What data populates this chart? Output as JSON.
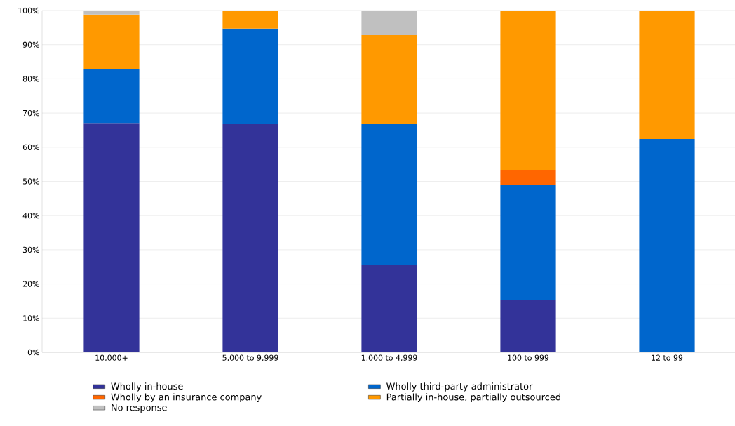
{
  "chart_data": {
    "type": "bar",
    "stacked": true,
    "categories": [
      "10,000+",
      "5,000 to 9,999",
      "1,000 to 4,999",
      "100 to 999",
      "12 to 99"
    ],
    "series": [
      {
        "name": "Wholly in-house",
        "color": "#333399",
        "values": [
          67.1,
          66.9,
          25.5,
          15.4,
          null
        ]
      },
      {
        "name": "Wholly third-party administrator",
        "color": "#0066cc",
        "values": [
          15.7,
          27.8,
          41.4,
          33.5,
          62.4
        ]
      },
      {
        "name": "Wholly by an insurance company",
        "color": "#ff6600",
        "values": [
          null,
          null,
          null,
          4.5,
          null
        ]
      },
      {
        "name": "Partially in-house, partially outsourced",
        "color": "#ff9900",
        "values": [
          16.0,
          5.3,
          25.9,
          46.6,
          37.6
        ]
      },
      {
        "name": "No response",
        "color": "#c0c0c0",
        "values": [
          1.2,
          null,
          7.2,
          null,
          null
        ]
      }
    ],
    "ylim": [
      0,
      100
    ],
    "yticks": [
      {
        "value": 0,
        "label": "0%"
      },
      {
        "value": 10,
        "label": "10%"
      },
      {
        "value": 20,
        "label": "20%"
      },
      {
        "value": 30,
        "label": "30%"
      },
      {
        "value": 40,
        "label": "40%"
      },
      {
        "value": 50,
        "label": "50%"
      },
      {
        "value": 60,
        "label": "60%"
      },
      {
        "value": 70,
        "label": "70%"
      },
      {
        "value": 80,
        "label": "80%"
      },
      {
        "value": 90,
        "label": "90%"
      },
      {
        "value": 100,
        "label": "100%"
      }
    ],
    "grid": "y",
    "legend": "bottom"
  }
}
